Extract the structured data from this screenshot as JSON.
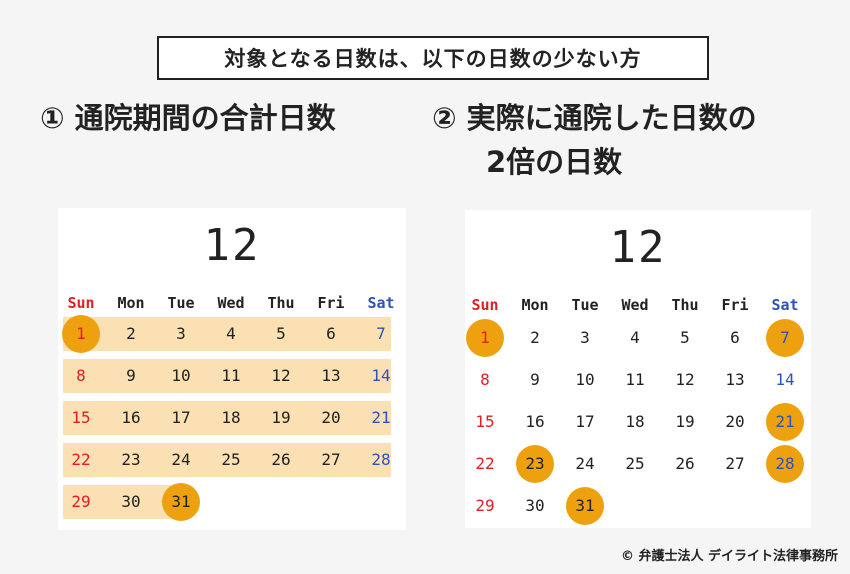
{
  "banner": "対象となる日数は、以下の日数の少ない方",
  "heading1": "① 通院期間の合計日数",
  "heading2_line1": "② 実際に通院した日数の",
  "heading2_line2": "2倍の日数",
  "copyright": "© 弁護士法人 デイライト法律事務所",
  "colors": {
    "sunday": "#e02020",
    "saturday": "#2d52b8",
    "highlight_band": "#fae0b3",
    "circle": "#eea10f"
  },
  "calendars": [
    {
      "month": "12",
      "weekdays": [
        "Sun",
        "Mon",
        "Tue",
        "Wed",
        "Thu",
        "Fri",
        "Sat"
      ],
      "weeks": [
        [
          "1",
          "2",
          "3",
          "4",
          "5",
          "6",
          "7"
        ],
        [
          "8",
          "9",
          "10",
          "11",
          "12",
          "13",
          "14"
        ],
        [
          "15",
          "16",
          "17",
          "18",
          "19",
          "20",
          "21"
        ],
        [
          "22",
          "23",
          "24",
          "25",
          "26",
          "27",
          "28"
        ],
        [
          "29",
          "30",
          "31",
          "",
          "",
          "",
          ""
        ]
      ],
      "period_highlight": {
        "from": "1",
        "to": "31"
      },
      "circled_days": [
        "1",
        "31"
      ]
    },
    {
      "month": "12",
      "weekdays": [
        "Sun",
        "Mon",
        "Tue",
        "Wed",
        "Thu",
        "Fri",
        "Sat"
      ],
      "weeks": [
        [
          "1",
          "2",
          "3",
          "4",
          "5",
          "6",
          "7"
        ],
        [
          "8",
          "9",
          "10",
          "11",
          "12",
          "13",
          "14"
        ],
        [
          "15",
          "16",
          "17",
          "18",
          "19",
          "20",
          "21"
        ],
        [
          "22",
          "23",
          "24",
          "25",
          "26",
          "27",
          "28"
        ],
        [
          "29",
          "30",
          "31",
          "",
          "",
          "",
          ""
        ]
      ],
      "circled_days": [
        "1",
        "7",
        "21",
        "23",
        "28",
        "31"
      ]
    }
  ]
}
